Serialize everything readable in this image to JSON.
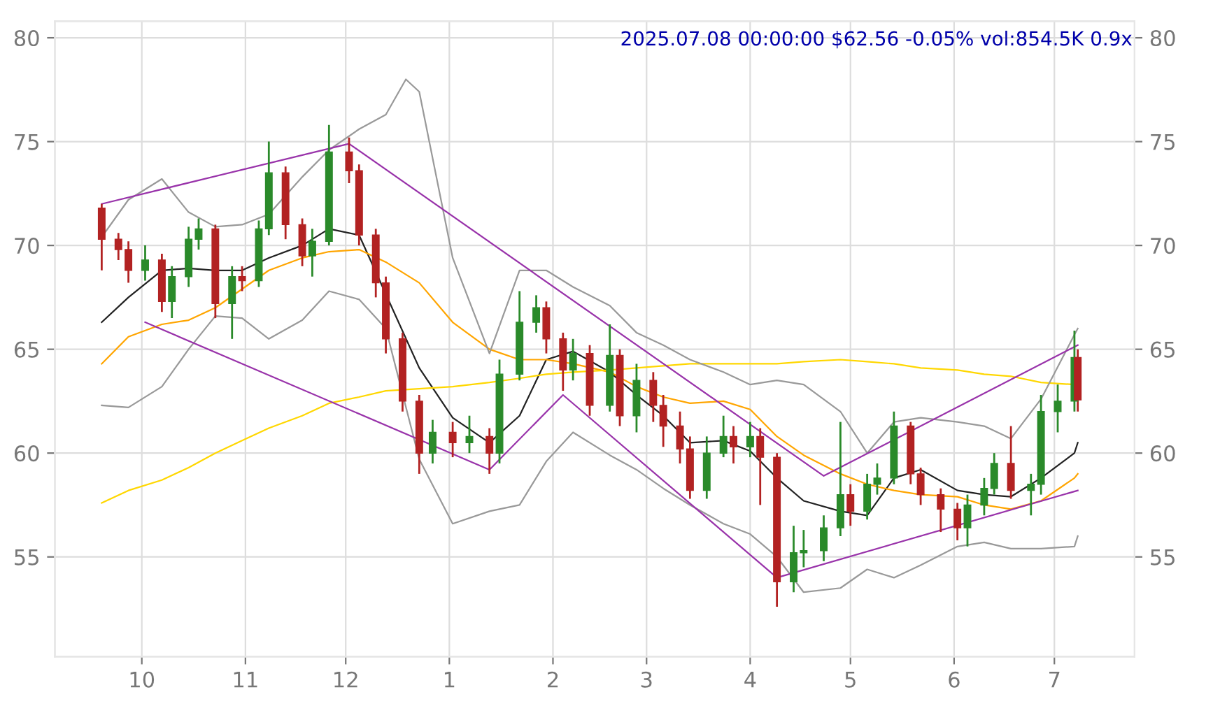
{
  "chart_data": {
    "type": "candlestick",
    "title": "2025.07.08 00:00:00 $62.56 -0.05% vol:854.5K 0.9x",
    "x": [
      "2024-09-19",
      "2024-09-24",
      "2024-09-27",
      "2024-10-02",
      "2024-10-07",
      "2024-10-10",
      "2024-10-15",
      "2024-10-18",
      "2024-10-23",
      "2024-10-28",
      "2024-10-31",
      "2024-11-05",
      "2024-11-08",
      "2024-11-13",
      "2024-11-18",
      "2024-11-21",
      "2024-11-26",
      "2024-12-02",
      "2024-12-05",
      "2024-12-10",
      "2024-12-13",
      "2024-12-18",
      "2024-12-23",
      "2024-12-27",
      "2025-01-02",
      "2025-01-07",
      "2025-01-13",
      "2025-01-16",
      "2025-01-22",
      "2025-01-27",
      "2025-01-30",
      "2025-02-04",
      "2025-02-07",
      "2025-02-12",
      "2025-02-18",
      "2025-02-21",
      "2025-02-26",
      "2025-03-03",
      "2025-03-06",
      "2025-03-11",
      "2025-03-14",
      "2025-03-19",
      "2025-03-24",
      "2025-03-27",
      "2025-04-01",
      "2025-04-04",
      "2025-04-09",
      "2025-04-14",
      "2025-04-17",
      "2025-04-23",
      "2025-04-28",
      "2025-05-01",
      "2025-05-06",
      "2025-05-09",
      "2025-05-14",
      "2025-05-19",
      "2025-05-22",
      "2025-05-28",
      "2025-06-02",
      "2025-06-05",
      "2025-06-10",
      "2025-06-13",
      "2025-06-18",
      "2025-06-24",
      "2025-06-27",
      "2025-07-02",
      "2025-07-07",
      "2025-07-08"
    ],
    "ohlc": [
      [
        71.8,
        72.0,
        68.8,
        70.3
      ],
      [
        70.3,
        70.6,
        69.3,
        69.8
      ],
      [
        69.8,
        70.2,
        68.2,
        68.8
      ],
      [
        68.8,
        70.0,
        68.3,
        69.3
      ],
      [
        69.3,
        69.6,
        66.8,
        67.3
      ],
      [
        67.3,
        69.0,
        66.5,
        68.5
      ],
      [
        68.5,
        70.9,
        68.0,
        70.3
      ],
      [
        70.3,
        71.3,
        69.8,
        70.8
      ],
      [
        70.8,
        71.0,
        66.5,
        67.2
      ],
      [
        67.2,
        69.0,
        65.5,
        68.5
      ],
      [
        68.5,
        69.0,
        67.8,
        68.3
      ],
      [
        68.3,
        71.2,
        68.0,
        70.8
      ],
      [
        70.8,
        75.0,
        70.5,
        73.5
      ],
      [
        73.5,
        73.8,
        70.3,
        71.0
      ],
      [
        71.0,
        71.3,
        69.0,
        69.5
      ],
      [
        69.5,
        70.8,
        68.5,
        70.2
      ],
      [
        70.2,
        75.8,
        70.0,
        74.5
      ],
      [
        74.5,
        75.2,
        73.0,
        73.6
      ],
      [
        73.6,
        73.9,
        70.0,
        70.5
      ],
      [
        70.5,
        70.8,
        67.5,
        68.2
      ],
      [
        68.2,
        68.5,
        64.8,
        65.5
      ],
      [
        65.5,
        65.8,
        62.0,
        62.5
      ],
      [
        62.5,
        62.8,
        59.0,
        60.0
      ],
      [
        60.0,
        61.6,
        59.5,
        61.0
      ],
      [
        61.0,
        61.5,
        59.8,
        60.5
      ],
      [
        60.5,
        61.8,
        60.0,
        60.8
      ],
      [
        60.8,
        61.2,
        59.0,
        60.0
      ],
      [
        60.0,
        64.5,
        59.5,
        63.8
      ],
      [
        63.8,
        67.8,
        63.5,
        66.3
      ],
      [
        66.3,
        67.6,
        65.8,
        67.0
      ],
      [
        67.0,
        67.3,
        64.8,
        65.5
      ],
      [
        65.5,
        65.8,
        63.0,
        64.0
      ],
      [
        64.0,
        65.5,
        63.5,
        64.8
      ],
      [
        64.8,
        65.2,
        61.8,
        62.3
      ],
      [
        62.3,
        66.2,
        62.0,
        64.7
      ],
      [
        64.7,
        65.0,
        61.3,
        61.8
      ],
      [
        61.8,
        64.3,
        61.0,
        63.5
      ],
      [
        63.5,
        63.9,
        61.5,
        62.3
      ],
      [
        62.3,
        62.8,
        60.3,
        61.3
      ],
      [
        61.3,
        62.0,
        59.5,
        60.2
      ],
      [
        60.2,
        60.8,
        57.8,
        58.2
      ],
      [
        58.2,
        60.8,
        57.8,
        60.0
      ],
      [
        60.0,
        61.8,
        59.8,
        60.8
      ],
      [
        60.8,
        61.3,
        59.5,
        60.3
      ],
      [
        60.3,
        61.5,
        59.8,
        60.8
      ],
      [
        60.8,
        61.2,
        57.5,
        59.8
      ],
      [
        59.8,
        60.0,
        52.6,
        53.8
      ],
      [
        53.8,
        56.5,
        53.3,
        55.2
      ],
      [
        55.2,
        56.3,
        54.5,
        55.3
      ],
      [
        55.3,
        57.0,
        54.8,
        56.4
      ],
      [
        56.4,
        61.5,
        56.0,
        58.0
      ],
      [
        58.0,
        58.5,
        56.5,
        57.2
      ],
      [
        57.2,
        59.0,
        56.8,
        58.5
      ],
      [
        58.5,
        59.5,
        58.0,
        58.8
      ],
      [
        58.8,
        62.0,
        58.5,
        61.3
      ],
      [
        61.3,
        61.5,
        58.5,
        59.0
      ],
      [
        59.0,
        59.3,
        57.5,
        58.0
      ],
      [
        58.0,
        58.3,
        56.2,
        57.3
      ],
      [
        57.3,
        57.6,
        55.8,
        56.4
      ],
      [
        56.4,
        58.0,
        55.5,
        57.5
      ],
      [
        57.5,
        58.8,
        57.0,
        58.3
      ],
      [
        58.3,
        60.0,
        58.0,
        59.5
      ],
      [
        59.5,
        61.3,
        57.8,
        58.2
      ],
      [
        58.2,
        59.0,
        57.0,
        58.5
      ],
      [
        58.5,
        62.8,
        58.0,
        62.0
      ],
      [
        62.0,
        63.3,
        61.0,
        62.5
      ],
      [
        62.5,
        65.9,
        62.0,
        64.6
      ],
      [
        64.6,
        65.0,
        62.0,
        62.56
      ]
    ],
    "colors": [
      "#b22222",
      "#b22222",
      "#b22222",
      "#2a8a2a",
      "#b22222",
      "#2a8a2a",
      "#2a8a2a",
      "#2a8a2a",
      "#b22222",
      "#2a8a2a",
      "#b22222",
      "#2a8a2a",
      "#2a8a2a",
      "#b22222",
      "#b22222",
      "#2a8a2a",
      "#2a8a2a",
      "#b22222",
      "#b22222",
      "#b22222",
      "#b22222",
      "#b22222",
      "#b22222",
      "#2a8a2a",
      "#b22222",
      "#2a8a2a",
      "#b22222",
      "#2a8a2a",
      "#2a8a2a",
      "#2a8a2a",
      "#b22222",
      "#b22222",
      "#2a8a2a",
      "#b22222",
      "#2a8a2a",
      "#b22222",
      "#2a8a2a",
      "#b22222",
      "#b22222",
      "#b22222",
      "#b22222",
      "#2a8a2a",
      "#2a8a2a",
      "#b22222",
      "#2a8a2a",
      "#b22222",
      "#b22222",
      "#2a8a2a",
      "#2a8a2a",
      "#2a8a2a",
      "#2a8a2a",
      "#b22222",
      "#2a8a2a",
      "#2a8a2a",
      "#2a8a2a",
      "#b22222",
      "#b22222",
      "#b22222",
      "#b22222",
      "#2a8a2a",
      "#2a8a2a",
      "#2a8a2a",
      "#b22222",
      "#2a8a2a",
      "#2a8a2a",
      "#2a8a2a",
      "#2a8a2a",
      "#b22222"
    ],
    "series": [
      {
        "type": "line",
        "color": "#222222",
        "x": [
          "2024-09-19",
          "2024-09-27",
          "2024-10-07",
          "2024-10-15",
          "2024-10-23",
          "2024-10-31",
          "2024-11-08",
          "2024-11-18",
          "2024-11-26",
          "2024-12-05",
          "2024-12-23",
          "2025-01-02",
          "2025-01-13",
          "2025-01-22",
          "2025-01-30",
          "2025-02-07",
          "2025-02-18",
          "2025-02-26",
          "2025-03-06",
          "2025-03-14",
          "2025-03-24",
          "2025-04-01",
          "2025-04-09",
          "2025-04-17",
          "2025-04-28",
          "2025-05-06",
          "2025-05-14",
          "2025-05-22",
          "2025-06-02",
          "2025-06-10",
          "2025-06-18",
          "2025-06-27",
          "2025-07-07",
          "2025-07-08"
        ],
        "values": [
          66.3,
          67.5,
          68.8,
          68.9,
          68.8,
          68.8,
          69.4,
          70.0,
          70.8,
          70.5,
          64.1,
          61.7,
          60.5,
          61.8,
          64.5,
          64.9,
          63.9,
          62.8,
          61.8,
          60.5,
          60.6,
          60.1,
          58.8,
          57.7,
          57.2,
          57.0,
          58.8,
          59.2,
          58.2,
          58.0,
          57.9,
          58.8,
          60.0,
          60.5
        ]
      },
      {
        "type": "line",
        "color": "#ffa500",
        "x": [
          "2024-09-19",
          "2024-09-27",
          "2024-10-07",
          "2024-10-15",
          "2024-10-23",
          "2024-10-31",
          "2024-11-08",
          "2024-11-18",
          "2024-11-26",
          "2024-12-05",
          "2024-12-13",
          "2024-12-23",
          "2025-01-02",
          "2025-01-13",
          "2025-01-22",
          "2025-01-30",
          "2025-02-07",
          "2025-02-18",
          "2025-02-26",
          "2025-03-06",
          "2025-03-14",
          "2025-03-24",
          "2025-04-01",
          "2025-04-09",
          "2025-04-17",
          "2025-04-28",
          "2025-05-06",
          "2025-05-14",
          "2025-05-22",
          "2025-06-02",
          "2025-06-10",
          "2025-06-18",
          "2025-06-27",
          "2025-07-07",
          "2025-07-08"
        ],
        "values": [
          64.3,
          65.6,
          66.2,
          66.4,
          67.0,
          67.9,
          68.8,
          69.4,
          69.7,
          69.8,
          69.2,
          68.2,
          66.3,
          65.0,
          64.5,
          64.5,
          64.3,
          63.9,
          63.2,
          62.7,
          62.4,
          62.5,
          62.1,
          60.8,
          59.9,
          59.0,
          58.5,
          58.2,
          58.0,
          57.9,
          57.5,
          57.3,
          57.7,
          58.8,
          59.0
        ]
      },
      {
        "type": "line",
        "color": "#ffd700",
        "x": [
          "2024-09-19",
          "2024-09-27",
          "2024-10-07",
          "2024-10-15",
          "2024-10-23",
          "2024-10-31",
          "2024-11-08",
          "2024-11-18",
          "2024-11-26",
          "2024-12-05",
          "2024-12-13",
          "2024-12-23",
          "2025-01-02",
          "2025-01-13",
          "2025-01-22",
          "2025-01-30",
          "2025-02-07",
          "2025-02-18",
          "2025-02-26",
          "2025-03-06",
          "2025-03-14",
          "2025-03-24",
          "2025-04-01",
          "2025-04-09",
          "2025-04-17",
          "2025-04-28",
          "2025-05-06",
          "2025-05-14",
          "2025-05-22",
          "2025-06-02",
          "2025-06-10",
          "2025-06-18",
          "2025-06-27",
          "2025-07-07"
        ],
        "values": [
          57.6,
          58.2,
          58.7,
          59.3,
          60.0,
          60.6,
          61.2,
          61.8,
          62.4,
          62.7,
          63.0,
          63.1,
          63.2,
          63.4,
          63.6,
          63.8,
          63.9,
          64.0,
          64.1,
          64.2,
          64.3,
          64.3,
          64.3,
          64.3,
          64.4,
          64.5,
          64.4,
          64.3,
          64.1,
          64.0,
          63.8,
          63.7,
          63.4,
          63.3
        ]
      },
      {
        "type": "line",
        "color": "#999999",
        "x": [
          "2024-09-19",
          "2024-09-27",
          "2024-10-07",
          "2024-10-15",
          "2024-10-23",
          "2024-10-31",
          "2024-11-08",
          "2024-11-18",
          "2024-11-26",
          "2024-12-05",
          "2024-12-13",
          "2024-12-19",
          "2024-12-23",
          "2025-01-02",
          "2025-01-13",
          "2025-01-22",
          "2025-01-30",
          "2025-02-07",
          "2025-02-18",
          "2025-02-26",
          "2025-03-06",
          "2025-03-14",
          "2025-03-24",
          "2025-04-01",
          "2025-04-09",
          "2025-04-17",
          "2025-04-28",
          "2025-05-06",
          "2025-05-14",
          "2025-05-22",
          "2025-06-02",
          "2025-06-10",
          "2025-06-18",
          "2025-06-27",
          "2025-07-07",
          "2025-07-08"
        ],
        "values": [
          70.4,
          72.2,
          73.2,
          71.6,
          70.9,
          71.0,
          71.5,
          73.3,
          74.6,
          75.6,
          76.3,
          78.0,
          77.4,
          69.4,
          64.8,
          68.8,
          68.8,
          68.0,
          67.1,
          65.8,
          65.2,
          64.5,
          63.9,
          63.3,
          63.5,
          63.3,
          62.0,
          60.0,
          61.5,
          61.7,
          61.5,
          61.3,
          60.7,
          62.6,
          65.7,
          66.0
        ]
      },
      {
        "type": "line",
        "color": "#999999",
        "x": [
          "2024-09-19",
          "2024-09-27",
          "2024-10-07",
          "2024-10-15",
          "2024-10-23",
          "2024-10-31",
          "2024-11-08",
          "2024-11-18",
          "2024-11-26",
          "2024-12-05",
          "2024-12-13",
          "2024-12-23",
          "2025-01-02",
          "2025-01-13",
          "2025-01-22",
          "2025-01-30",
          "2025-02-07",
          "2025-02-18",
          "2025-02-26",
          "2025-03-06",
          "2025-03-14",
          "2025-03-24",
          "2025-04-01",
          "2025-04-09",
          "2025-04-17",
          "2025-04-28",
          "2025-05-06",
          "2025-05-14",
          "2025-05-22",
          "2025-06-02",
          "2025-06-10",
          "2025-06-18",
          "2025-06-27",
          "2025-07-07",
          "2025-07-08"
        ],
        "values": [
          62.3,
          62.2,
          63.2,
          65.0,
          66.6,
          66.5,
          65.5,
          66.4,
          67.8,
          67.4,
          66.0,
          59.7,
          56.6,
          57.2,
          57.5,
          59.6,
          61.0,
          59.9,
          59.2,
          58.3,
          57.5,
          56.6,
          56.1,
          55.0,
          53.3,
          53.5,
          54.4,
          54.0,
          54.6,
          55.5,
          55.7,
          55.4,
          55.4,
          55.5,
          56.0
        ]
      },
      {
        "type": "line",
        "color": "#9933aa",
        "x": [
          "2024-09-19",
          "2024-12-02",
          "2025-04-23",
          "2025-07-08"
        ],
        "values": [
          72.0,
          74.9,
          58.9,
          65.2
        ]
      },
      {
        "type": "line",
        "color": "#9933aa",
        "x": [
          "2024-10-02",
          "2025-01-13",
          "2025-02-04",
          "2025-04-09",
          "2025-07-08"
        ],
        "values": [
          66.3,
          59.2,
          62.8,
          54.0,
          58.2
        ]
      }
    ],
    "xlim": [
      "2024-09-05",
      "2025-07-25"
    ],
    "xticks": [
      {
        "value": "2024-10-01",
        "label": "10"
      },
      {
        "value": "2024-11-01",
        "label": "11"
      },
      {
        "value": "2024-12-01",
        "label": "12"
      },
      {
        "value": "2025-01-01",
        "label": "1"
      },
      {
        "value": "2025-02-01",
        "label": "2"
      },
      {
        "value": "2025-03-01",
        "label": "3"
      },
      {
        "value": "2025-04-01",
        "label": "4"
      },
      {
        "value": "2025-05-01",
        "label": "5"
      },
      {
        "value": "2025-06-01",
        "label": "6"
      },
      {
        "value": "2025-07-01",
        "label": "7"
      }
    ],
    "ylim": [
      50.2,
      80.8
    ],
    "yticks": [
      55,
      60,
      65,
      70,
      75,
      80
    ],
    "y2lim": [
      50.2,
      80.8
    ],
    "y2ticks": [
      55,
      60,
      65,
      70,
      75,
      80
    ],
    "grid": true
  }
}
